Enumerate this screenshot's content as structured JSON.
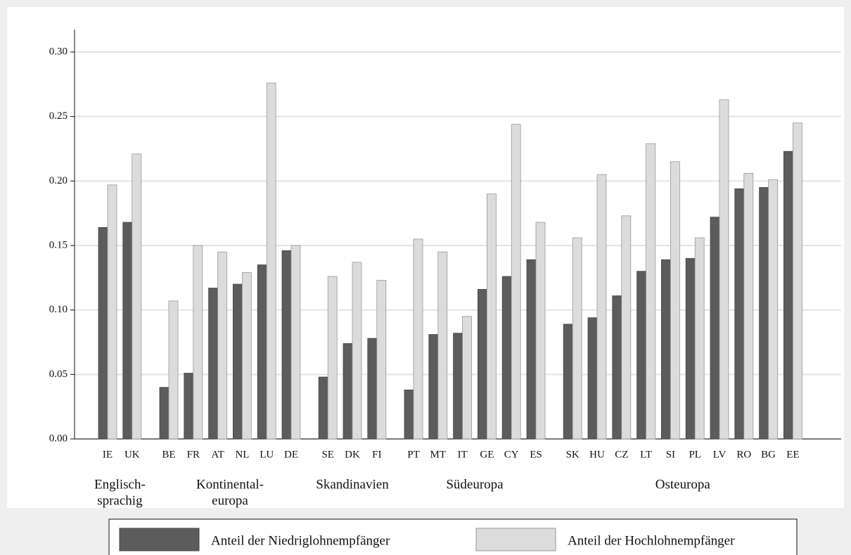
{
  "chart_data": {
    "type": "bar",
    "groups": [
      {
        "label": [
          "Englisch-",
          "sprachig"
        ],
        "categories": [
          "IE",
          "UK"
        ]
      },
      {
        "label": [
          "Kontinental-",
          "europa"
        ],
        "categories": [
          "BE",
          "FR",
          "AT",
          "NL",
          "LU",
          "DE"
        ]
      },
      {
        "label": [
          "Skandinavien"
        ],
        "categories": [
          "SE",
          "DK",
          "FI"
        ]
      },
      {
        "label": [
          "Südeuropa"
        ],
        "categories": [
          "PT",
          "MT",
          "IT",
          "GE",
          "CY",
          "ES"
        ]
      },
      {
        "label": [
          "Osteuropa"
        ],
        "categories": [
          "SK",
          "HU",
          "CZ",
          "LT",
          "SI",
          "PL",
          "LV",
          "RO",
          "BG",
          "EE"
        ]
      }
    ],
    "series": [
      {
        "name": "Anteil der Niedriglohnempfänger",
        "color": "#5c5c5c",
        "values": [
          0.164,
          0.168,
          0.04,
          0.051,
          0.117,
          0.12,
          0.135,
          0.146,
          0.048,
          0.074,
          0.078,
          0.038,
          0.081,
          0.082,
          0.116,
          0.126,
          0.139,
          0.089,
          0.094,
          0.111,
          0.13,
          0.139,
          0.14,
          0.172,
          0.194,
          0.195,
          0.223
        ]
      },
      {
        "name": "Anteil der Hochlohnempfänger",
        "color": "#dcdcdc",
        "values": [
          0.197,
          0.221,
          0.107,
          0.15,
          0.145,
          0.129,
          0.276,
          0.15,
          0.126,
          0.137,
          0.123,
          0.155,
          0.145,
          0.095,
          0.19,
          0.244,
          0.168,
          0.156,
          0.205,
          0.173,
          0.229,
          0.215,
          0.156,
          0.263,
          0.206,
          0.201,
          0.245
        ]
      }
    ],
    "ylim": [
      0,
      0.3
    ],
    "yticks": [
      {
        "value": 0,
        "label": "0.00"
      },
      {
        "value": 0.05,
        "label": "0.05"
      },
      {
        "value": 0.1,
        "label": "0.10"
      },
      {
        "value": 0.15,
        "label": "0.15"
      },
      {
        "value": 0.2,
        "label": "0.20"
      },
      {
        "value": 0.25,
        "label": "0.25"
      },
      {
        "value": 0.3,
        "label": "0.30"
      }
    ],
    "grid": true
  }
}
